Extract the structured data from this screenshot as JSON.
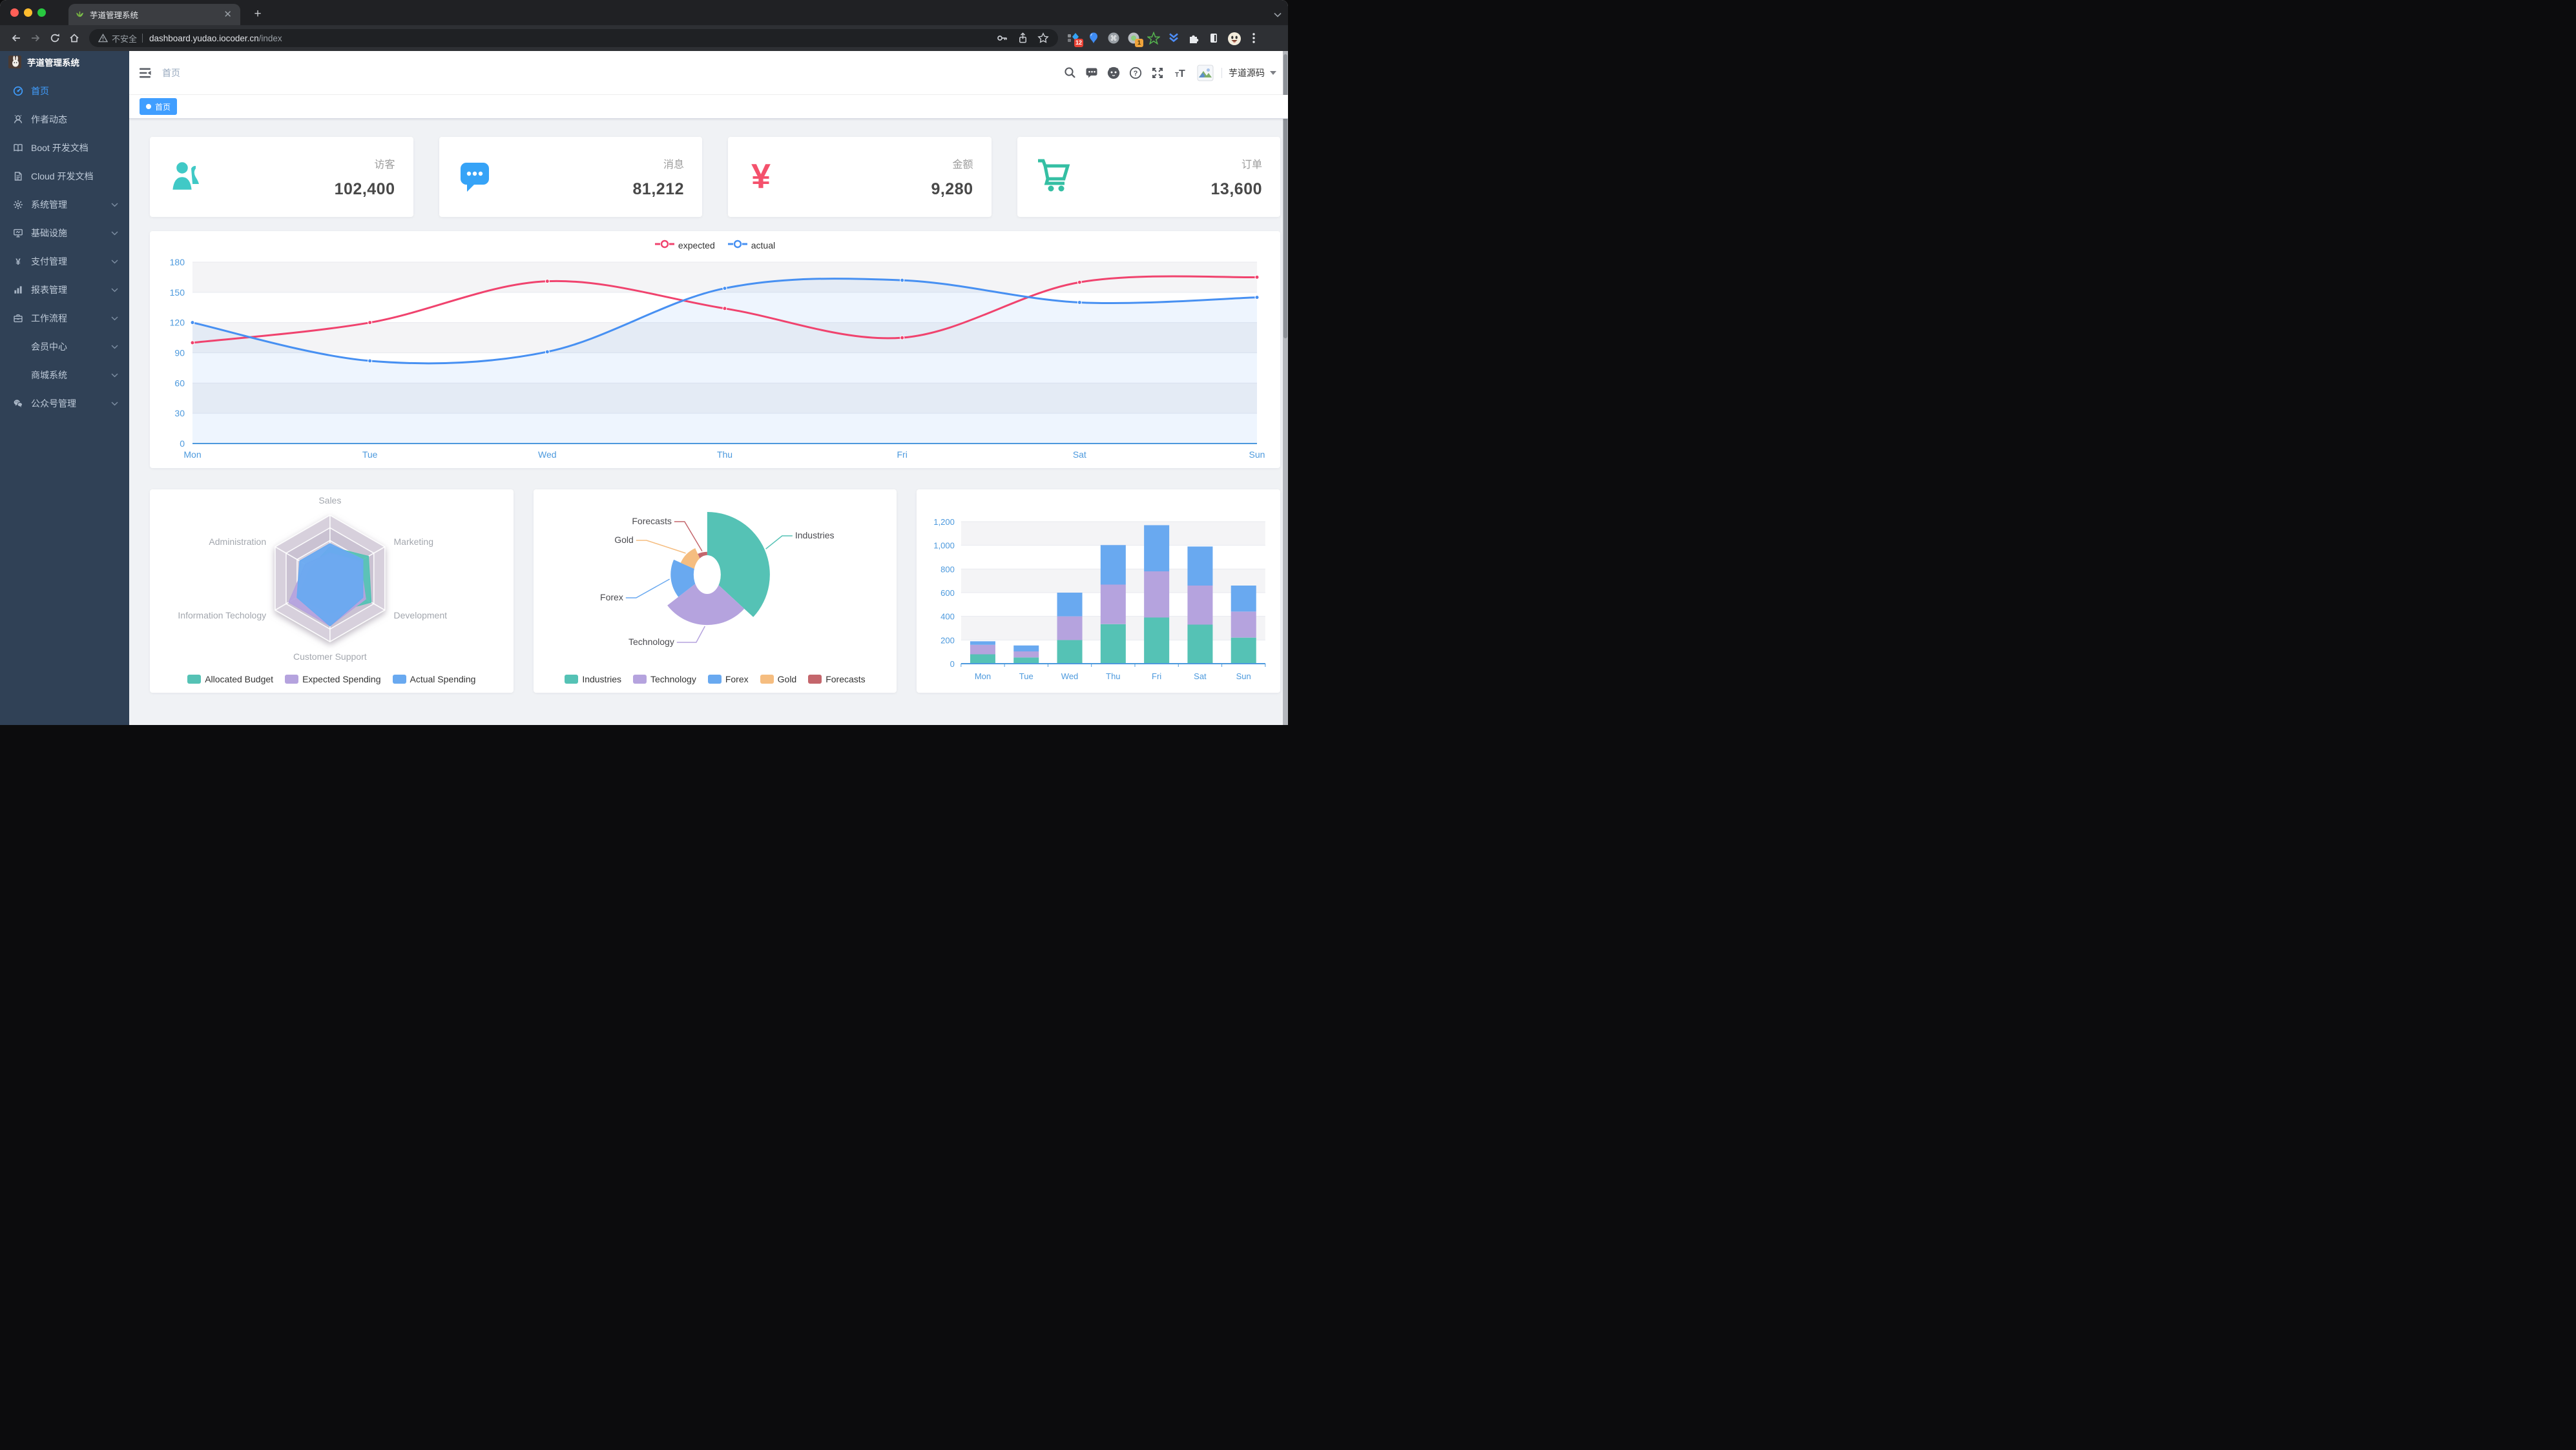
{
  "browser": {
    "tab_title": "芋道管理系统",
    "security_label": "不安全",
    "url_host": "dashboard.yudao.iocoder.cn",
    "url_path": "/index",
    "ext_badge_1": "12",
    "ext_badge_2": "1"
  },
  "sidebar": {
    "logo_title": "芋道管理系统",
    "items": [
      {
        "key": "home",
        "label": "首页",
        "icon": "dashboard-icon",
        "active": true,
        "expandable": false
      },
      {
        "key": "author",
        "label": "作者动态",
        "icon": "people-icon",
        "active": false,
        "expandable": false
      },
      {
        "key": "boot-docs",
        "label": "Boot 开发文档",
        "icon": "book-icon",
        "active": false,
        "expandable": false
      },
      {
        "key": "cloud-docs",
        "label": "Cloud 开发文档",
        "icon": "document-icon",
        "active": false,
        "expandable": false
      },
      {
        "key": "system",
        "label": "系统管理",
        "icon": "gear-icon",
        "active": false,
        "expandable": true
      },
      {
        "key": "infra",
        "label": "基础设施",
        "icon": "monitor-icon",
        "active": false,
        "expandable": true
      },
      {
        "key": "payment",
        "label": "支付管理",
        "icon": "yen-icon",
        "active": false,
        "expandable": true
      },
      {
        "key": "report",
        "label": "报表管理",
        "icon": "chart-icon",
        "active": false,
        "expandable": true
      },
      {
        "key": "workflow",
        "label": "工作流程",
        "icon": "briefcase-icon",
        "active": false,
        "expandable": true
      },
      {
        "key": "member",
        "label": "会员中心",
        "icon": null,
        "active": false,
        "expandable": true
      },
      {
        "key": "mall",
        "label": "商城系统",
        "icon": null,
        "active": false,
        "expandable": true
      },
      {
        "key": "wechat-mp",
        "label": "公众号管理",
        "icon": "wechat-icon",
        "active": false,
        "expandable": true
      }
    ]
  },
  "navbar": {
    "breadcrumb": "首页",
    "username": "芋道源码",
    "icons": [
      "search-icon",
      "message-icon",
      "github-icon",
      "help-icon",
      "fullscreen-icon",
      "font-size-icon"
    ]
  },
  "tags": [
    {
      "label": "首页",
      "active": true
    }
  ],
  "stats": [
    {
      "label": "访客",
      "value": "102,400",
      "icon": "peoples-icon",
      "color": "#40c9c6"
    },
    {
      "label": "消息",
      "value": "81,212",
      "icon": "message-icon",
      "color": "#36a3f7"
    },
    {
      "label": "金额",
      "value": "9,280",
      "icon": "money-icon",
      "color": "#f4516c"
    },
    {
      "label": "订单",
      "value": "13,600",
      "icon": "shopping-icon",
      "color": "#34bfa3"
    }
  ],
  "chart_data": [
    {
      "id": "line",
      "type": "line",
      "x": [
        "Mon",
        "Tue",
        "Wed",
        "Thu",
        "Fri",
        "Sat",
        "Sun"
      ],
      "series": [
        {
          "name": "expected",
          "color": "#F0436E",
          "values": [
            100,
            120,
            161,
            134,
            105,
            160,
            165
          ],
          "area": false
        },
        {
          "name": "actual",
          "color": "#4790F2",
          "values": [
            120,
            82,
            91,
            154,
            162,
            140,
            145
          ],
          "area": true
        }
      ],
      "ylim": [
        0,
        180
      ],
      "yticks": [
        0,
        30,
        60,
        90,
        120,
        150,
        180
      ],
      "legend_position": "top",
      "grid": "split-bands",
      "axis_color": "#4C99DD"
    },
    {
      "id": "radar",
      "type": "radar",
      "indicators": [
        {
          "name": "Sales",
          "max": 10000
        },
        {
          "name": "Administration",
          "max": 20000
        },
        {
          "name": "Information Techology",
          "max": 20000
        },
        {
          "name": "Customer Support",
          "max": 20000
        },
        {
          "name": "Development",
          "max": 20000
        },
        {
          "name": "Marketing",
          "max": 20000
        }
      ],
      "series": [
        {
          "name": "Allocated Budget",
          "color": "#55C2B5",
          "values": [
            5000,
            7000,
            12000,
            11000,
            15000,
            14000
          ]
        },
        {
          "name": "Expected Spending",
          "color": "#B5A3DE",
          "values": [
            4000,
            9000,
            15000,
            15000,
            13000,
            11000
          ]
        },
        {
          "name": "Actual Spending",
          "color": "#69A9F0",
          "values": [
            5500,
            11000,
            12000,
            15000,
            12000,
            12000
          ]
        }
      ],
      "legend_position": "bottom"
    },
    {
      "id": "pie",
      "type": "pie",
      "rose": true,
      "slices": [
        {
          "name": "Industries",
          "value": 320,
          "color": "#55C2B5"
        },
        {
          "name": "Technology",
          "value": 240,
          "color": "#B5A3DE"
        },
        {
          "name": "Forex",
          "value": 149,
          "color": "#69A9F0"
        },
        {
          "name": "Gold",
          "value": 100,
          "color": "#F5BD80"
        },
        {
          "name": "Forecasts",
          "value": 59,
          "color": "#C4666C"
        }
      ],
      "legend_position": "bottom"
    },
    {
      "id": "bar",
      "type": "bar",
      "stacked": true,
      "categories": [
        "Mon",
        "Tue",
        "Wed",
        "Thu",
        "Fri",
        "Sat",
        "Sun"
      ],
      "series": [
        {
          "color": "#55C2B5",
          "values": [
            79,
            52,
            200,
            334,
            390,
            330,
            220
          ]
        },
        {
          "color": "#B5A3DE",
          "values": [
            80,
            52,
            200,
            334,
            390,
            330,
            220
          ]
        },
        {
          "color": "#69A9F0",
          "values": [
            30,
            50,
            200,
            334,
            390,
            330,
            220
          ]
        }
      ],
      "ylim": [
        0,
        1200
      ],
      "yticks": [
        0,
        200,
        400,
        600,
        800,
        1000,
        1200
      ],
      "grid": "split-bands",
      "axis_color": "#4C99DD"
    }
  ]
}
